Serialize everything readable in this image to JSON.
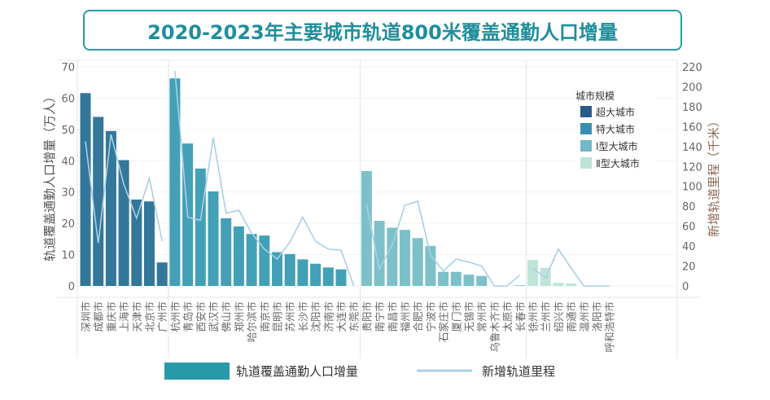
{
  "chart_data": {
    "type": "bar",
    "title": "2020-2023年主要城市轨道800米覆盖通勤人口增量",
    "ylabel": "轨道覆盖通勤人口增量（万人）",
    "y2label": "新增轨道里程（千米）",
    "ylim": [
      0,
      70
    ],
    "y2lim": [
      0,
      220
    ],
    "yticks": [
      "0",
      "10",
      "20",
      "30",
      "40",
      "50",
      "60",
      "70"
    ],
    "y2ticks": [
      "0",
      "20",
      "40",
      "60",
      "80",
      "100",
      "120",
      "140",
      "160",
      "180",
      "200",
      "220"
    ],
    "legend_title": "城市规模",
    "groups": [
      {
        "name": "超大城市",
        "color": "#2b5a88",
        "bar_color": "#33779b",
        "categories": [
          "深圳市",
          "成都市",
          "重庆市",
          "上海市",
          "天津市",
          "北京市",
          "广州市"
        ],
        "values": [
          61.6,
          54,
          49.5,
          40.2,
          27.6,
          27,
          7.5
        ],
        "line": [
          145,
          43,
          152,
          102,
          68,
          108,
          45
        ]
      },
      {
        "name": "特大城市",
        "color": "#3a8fb0",
        "bar_color": "#43a0b7",
        "categories": [
          "杭州市",
          "青岛市",
          "西安市",
          "武汉市",
          "佛山市",
          "郑州市",
          "哈尔滨市",
          "南京市",
          "昆明市",
          "苏州市",
          "长沙市",
          "沈阳市",
          "济南市",
          "大连市",
          "东莞市"
        ],
        "values": [
          66.3,
          45.5,
          37.5,
          30.2,
          21.6,
          19,
          16.6,
          16.1,
          10.8,
          10.2,
          8.5,
          7.1,
          5.9,
          5.3,
          0
        ],
        "line": [
          216,
          69,
          66,
          149,
          73,
          76,
          53,
          37,
          27,
          44,
          69,
          45,
          37,
          36,
          0
        ]
      },
      {
        "name": "Ⅰ型大城市",
        "color": "#72b8c6",
        "bar_color": "#7dc0c9",
        "categories": [
          "贵阳市",
          "南宁市",
          "南昌市",
          "福州市",
          "合肥市",
          "宁波市",
          "石家庄市",
          "厦门市",
          "无锡市",
          "常州市",
          "乌鲁木齐市",
          "太原市",
          "长春市"
        ],
        "values": [
          36.7,
          20.8,
          18.6,
          17.9,
          15.3,
          12.8,
          4.5,
          4.5,
          3.6,
          3.2,
          0,
          0,
          0.2
        ],
        "line": [
          82,
          17,
          41,
          81,
          85,
          31,
          15,
          27,
          24,
          20,
          0,
          0,
          11
        ]
      },
      {
        "name": "Ⅱ型大城市",
        "color": "#bde4d9",
        "bar_color": "#bfe5da",
        "categories": [
          "徐州市",
          "兰州市",
          "绍兴市",
          "南通市",
          "温州市",
          "洛阳市",
          "呼和浩特市"
        ],
        "values": [
          8.3,
          5.8,
          1.0,
          0.8,
          0,
          0,
          0
        ],
        "line": [
          18,
          8,
          37,
          18,
          0,
          0,
          0
        ]
      }
    ],
    "series": [
      {
        "name": "轨道覆盖通勤人口增量",
        "type": "bar",
        "color": "#2899a8"
      },
      {
        "name": "新增轨道里程",
        "type": "line",
        "color": "#a9cfe6"
      }
    ]
  }
}
